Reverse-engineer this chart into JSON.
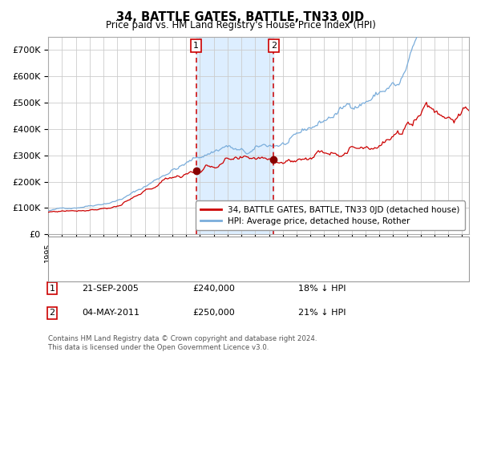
{
  "title": "34, BATTLE GATES, BATTLE, TN33 0JD",
  "subtitle": "Price paid vs. HM Land Registry's House Price Index (HPI)",
  "ylim": [
    0,
    750000
  ],
  "yticks": [
    0,
    100000,
    200000,
    300000,
    400000,
    500000,
    600000,
    700000
  ],
  "ytick_labels": [
    "£0",
    "£100K",
    "£200K",
    "£300K",
    "£400K",
    "£500K",
    "£600K",
    "£700K"
  ],
  "line1_color": "#cc0000",
  "line2_color": "#7aaddb",
  "marker_color": "#880000",
  "purchase1_date_x": 2005.72,
  "purchase1_value": 240000,
  "purchase2_date_x": 2011.34,
  "purchase2_value": 250000,
  "shade_x1": 2005.72,
  "shade_x2": 2011.34,
  "shade_color": "#ddeeff",
  "vline_color": "#cc0000",
  "grid_color": "#cccccc",
  "background_color": "#ffffff",
  "legend_line1": "34, BATTLE GATES, BATTLE, TN33 0JD (detached house)",
  "legend_line2": "HPI: Average price, detached house, Rother",
  "annotation1_label": "1",
  "annotation2_label": "2",
  "annotation1_date": "21-SEP-2005",
  "annotation1_price": "£240,000",
  "annotation1_hpi": "18% ↓ HPI",
  "annotation2_date": "04-MAY-2011",
  "annotation2_price": "£250,000",
  "annotation2_hpi": "21% ↓ HPI",
  "footer": "Contains HM Land Registry data © Crown copyright and database right 2024.\nThis data is licensed under the Open Government Licence v3.0.",
  "xmin": 1995.0,
  "xmax": 2025.5
}
